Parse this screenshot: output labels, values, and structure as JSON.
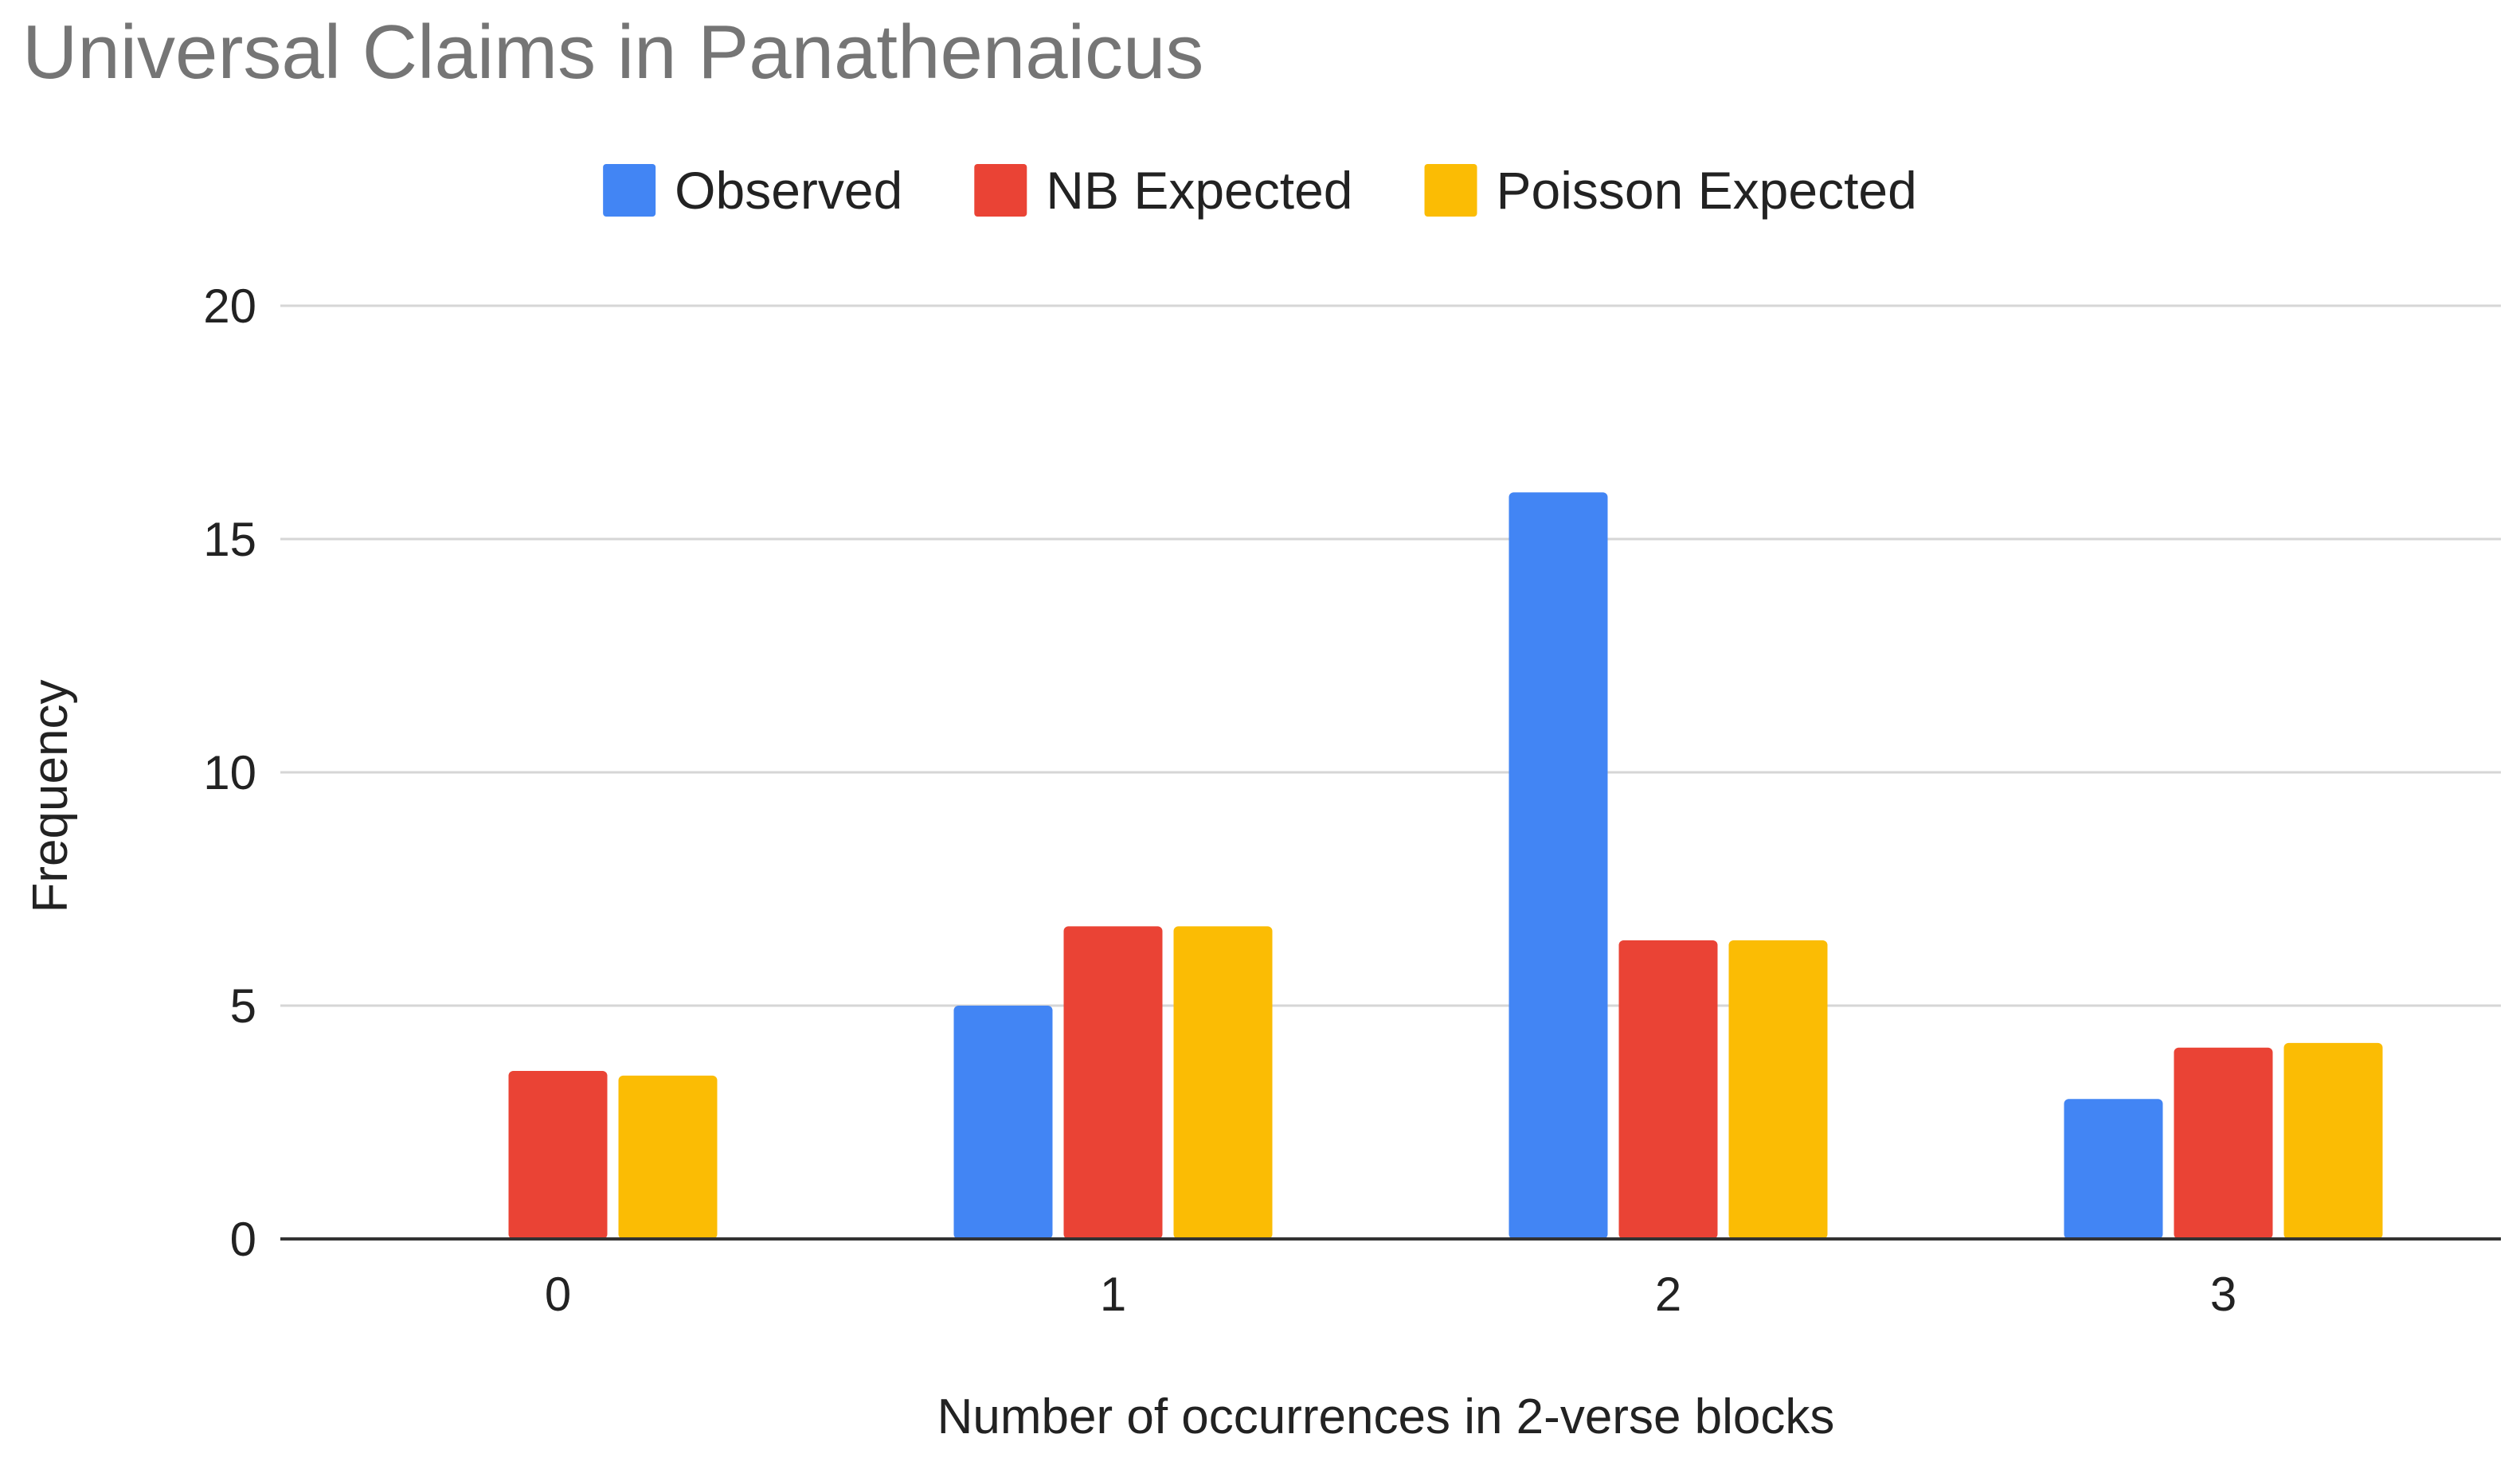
{
  "chart_data": {
    "type": "bar",
    "title": "Universal Claims in Panathenaicus",
    "xlabel": "Number of occurrences in 2-verse blocks",
    "ylabel": "Frequency",
    "categories": [
      "0",
      "1",
      "2",
      "3"
    ],
    "series": [
      {
        "name": "Observed",
        "color": "#4285F4",
        "values": [
          0,
          5,
          16,
          3
        ]
      },
      {
        "name": "NB Expected",
        "color": "#EA4335",
        "values": [
          3.6,
          6.7,
          6.4,
          4.1
        ]
      },
      {
        "name": "Poisson Expected",
        "color": "#FBBC04",
        "values": [
          3.5,
          6.7,
          6.4,
          4.2
        ]
      }
    ],
    "ylim": [
      0,
      20
    ],
    "yticks": [
      "0",
      "5",
      "10",
      "15",
      "20"
    ],
    "grid": true,
    "legend_position": "top"
  }
}
